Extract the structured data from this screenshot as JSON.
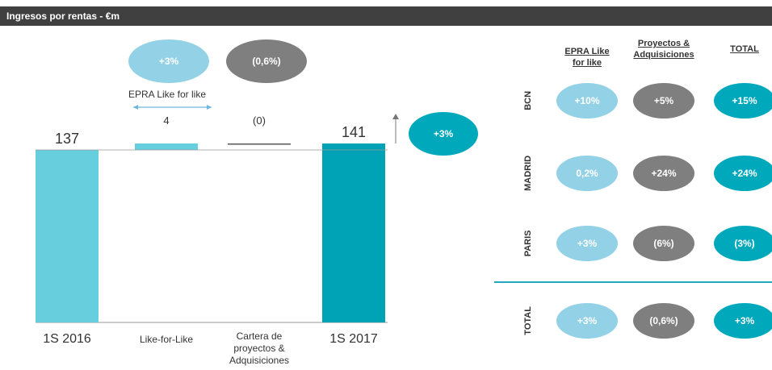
{
  "header": {
    "title": "Ingresos por rentas - €m"
  },
  "chart_data": {
    "type": "waterfall",
    "categories": [
      "1S 2016",
      "Like-for-Like",
      "Cartera de proyectos & Adquisiciones",
      "1S 2017"
    ],
    "values": [
      137,
      4,
      -0.4,
      141
    ],
    "value_labels": [
      "137",
      "4",
      "(0)",
      "141"
    ],
    "kinds": [
      "total",
      "delta",
      "delta",
      "total"
    ],
    "colors": [
      "#66cedd",
      "#66cedd",
      "#555555",
      "#00a3b5"
    ],
    "ylim": [
      30,
      145
    ],
    "badges": [
      {
        "text": "+3%",
        "color": "#93d1e7"
      },
      {
        "text": "(0,6%)",
        "color": "#7f7f7f"
      }
    ],
    "badge_caption": "EPRA Like for like",
    "total_badge": {
      "text": "+3%",
      "color": "#00a8bc"
    }
  },
  "table": {
    "columns": [
      "EPRA Like for like",
      "Proyectos & Adquisiciones",
      "TOTAL"
    ],
    "column_colors": [
      "#93d1e7",
      "#7f7f7f",
      "#00a8bc"
    ],
    "rows": [
      {
        "label": "BCN",
        "cells": [
          "+10%",
          "+5%",
          "+15%"
        ]
      },
      {
        "label": "MADRID",
        "cells": [
          "0,2%",
          "+24%",
          "+24%"
        ]
      },
      {
        "label": "PARIS",
        "cells": [
          "+3%",
          "(6%)",
          "(3%)"
        ]
      },
      {
        "label": "TOTAL",
        "cells": [
          "+3%",
          "(0,6%)",
          "+3%"
        ]
      }
    ]
  }
}
